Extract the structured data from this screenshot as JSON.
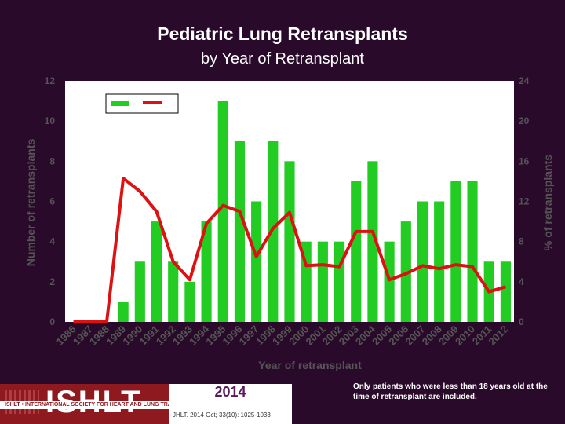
{
  "colors": {
    "background": "#2a0a2a",
    "plot_area": "#ffffff",
    "bar": "#22cc22",
    "line": "#dd1111",
    "axis_text": "#555555"
  },
  "chart_data": {
    "type": "bar",
    "title": "Pediatric Lung Retransplants",
    "subtitle": "by Year of Retransplant",
    "xlabel": "Year of retransplant",
    "ylabel": "Number of retransplants",
    "y2label": "% of retransplants",
    "ylim": [
      0,
      12
    ],
    "y2lim": [
      0,
      24
    ],
    "yticks": [
      "0",
      "2",
      "4",
      "6",
      "8",
      "10",
      "12"
    ],
    "y2ticks": [
      "0",
      "4",
      "8",
      "12",
      "16",
      "20",
      "24"
    ],
    "grid": false,
    "legend": "top-left",
    "categories": [
      "1986",
      "1987",
      "1988",
      "1989",
      "1990",
      "1991",
      "1992",
      "1993",
      "1994",
      "1995",
      "1996",
      "1997",
      "1998",
      "1999",
      "2000",
      "2001",
      "2002",
      "2003",
      "2004",
      "2005",
      "2006",
      "2007",
      "2008",
      "2009",
      "2010",
      "2011",
      "2012"
    ],
    "series": [
      {
        "kind": "bar",
        "axis": "left",
        "values": [
          0,
          0,
          0,
          1,
          3,
          5,
          3,
          2,
          5,
          11,
          9,
          6,
          9,
          8,
          4,
          4,
          4,
          7,
          8,
          4,
          5,
          6,
          6,
          7,
          7,
          3,
          3
        ]
      },
      {
        "kind": "line",
        "axis": "right",
        "values": [
          0,
          0,
          0,
          14.3,
          13.0,
          11.0,
          6.0,
          4.2,
          9.8,
          11.6,
          11.0,
          6.5,
          9.3,
          10.9,
          5.6,
          5.7,
          5.5,
          9.0,
          9.0,
          4.2,
          4.8,
          5.6,
          5.3,
          5.7,
          5.5,
          3.0,
          3.5
        ]
      }
    ]
  },
  "footer": {
    "logo_text": "ISHLT",
    "org_name": "ISHLT • INTERNATIONAL SOCIETY FOR HEART AND LUNG TRANSPLANTATION",
    "year": "2014",
    "citation": "JHLT. 2014 Oct; 33(10): 1025-1033",
    "note": "Only patients who were less than 18 years old at the time of retransplant are included."
  }
}
